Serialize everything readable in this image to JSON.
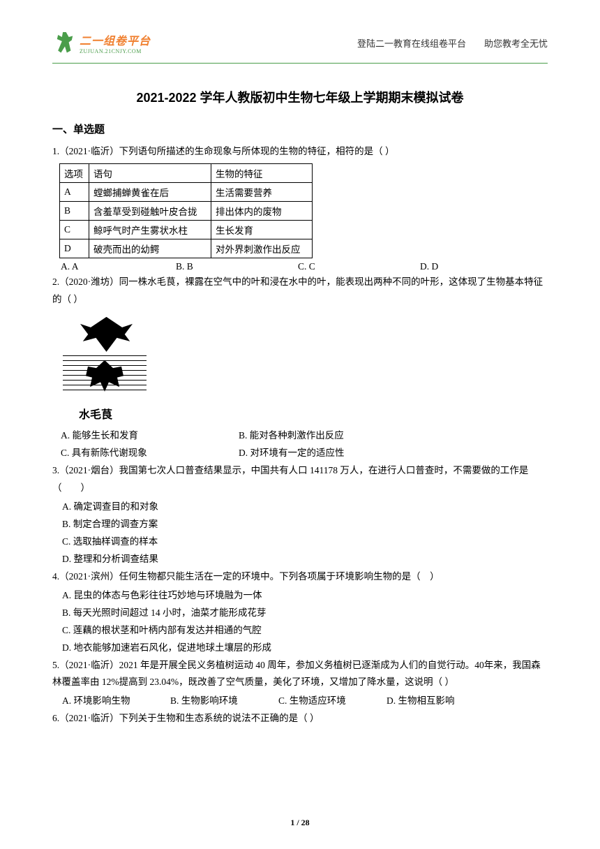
{
  "header": {
    "logo_chinese": "二一组卷平台",
    "logo_url": "ZUJUAN.21CNJY.COM",
    "right_text": "登陆二一教育在线组卷平台　　助您教考全无忧"
  },
  "title": "2021-2022 学年人教版初中生物七年级上学期期末模拟试卷",
  "section_title": "一、单选题",
  "q1": {
    "stem": "1.（2021·临沂）下列语句所描述的生命现象与所体现的生物的特征，相符的是（ ）",
    "table": {
      "header": [
        "选项",
        "语句",
        "生物的特征"
      ],
      "rows": [
        [
          "A",
          "螳螂捕蝉黄雀在后",
          "生活需要营养"
        ],
        [
          "B",
          "含羞草受到碰触叶皮合拢",
          "排出体内的废物"
        ],
        [
          "C",
          "鲸呼气时产生雾状水柱",
          "生长发育"
        ],
        [
          "D",
          "破壳而出的幼鳄",
          "对外界刺激作出反应"
        ]
      ]
    },
    "opts": {
      "a": "A. A",
      "b": "B. B",
      "c": "C. C",
      "d": "D. D"
    }
  },
  "q2": {
    "stem": "2.（2020·潍坊）同一株水毛茛，裸露在空气中的叶和浸在水中的叶，能表现出两种不同的叶形，这体现了生物基本特征的（ ）",
    "plant_label": "水毛茛",
    "opts": {
      "a": "A. 能够生长和发育",
      "b": "B. 能对各种刺激作出反应",
      "c": "C. 具有新陈代谢现象",
      "d": "D. 对环境有一定的适应性"
    }
  },
  "q3": {
    "stem": "3.（2021·烟台）我国第七次人口普查结果显示，中国共有人口 141178 万人，在进行人口普查时，不需要做的工作是（　　）",
    "opts": {
      "a": "A. 确定调查目的和对象",
      "b": "B. 制定合理的调查方案",
      "c": "C. 选取抽样调查的样本",
      "d": "D. 整理和分析调查结果"
    }
  },
  "q4": {
    "stem": "4.（2021·滨州）任何生物都只能生活在一定的环境中。下列各项属于环境影响生物的是（　）",
    "opts": {
      "a": "A. 昆虫的体态与色彩往往巧妙地与环境融为一体",
      "b": "B. 每天光照时间超过 14 小时，油菜才能形成花芽",
      "c": "C. 莲藕的根状茎和叶柄内部有发达并相通的气腔",
      "d": "D. 地衣能够加速岩石风化，促进地球土壤层的形成"
    }
  },
  "q5": {
    "stem": "5.（2021·临沂）2021 年是开展全民义务植树运动 40 周年，参加义务植树已逐渐成为人们的自觉行动。40年来，我国森林覆盖率由 12%提高到 23.04%，既改善了空气质量，美化了环境，又增加了降水量，这说明（ ）",
    "opts": {
      "a": "A.  环境影响生物",
      "b": "B. 生物影响环境",
      "c": "C. 生物适应环境",
      "d": "D. 生物相互影响"
    }
  },
  "q6": {
    "stem": "6.（2021·临沂）下列关于生物和生态系统的说法不正确的是（ ）"
  },
  "footer": "1 / 28",
  "colors": {
    "primary_green": "#4a9d4a",
    "logo_orange": "#f08030",
    "text_black": "#000000"
  }
}
